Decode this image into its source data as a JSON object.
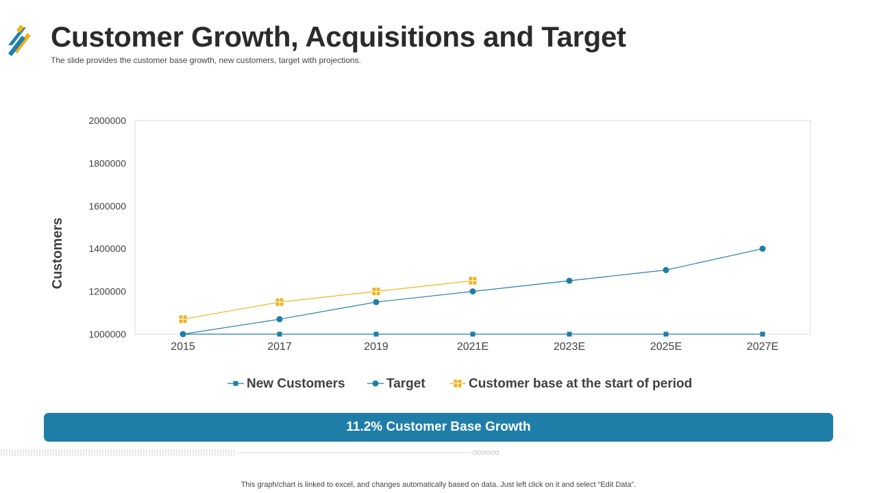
{
  "slide": {
    "title": "Customer Growth, Acquisitions and Target",
    "subtitle": "The slide provides  the customer base growth,  new customers, target with projections.",
    "banner_text": "11.2% Customer Base Growth",
    "footnote": "This graph/chart is linked to excel,  and changes automatically based on data. Just left click on it and select “Edit Data”."
  },
  "colors": {
    "blue": "#1f7ea8",
    "gold": "#f0b21b",
    "dark": "#2b2b2b"
  },
  "chart_data": {
    "type": "line",
    "ylabel": "Customers",
    "xlabel": "",
    "ylim": [
      1000000,
      2000000
    ],
    "yticks": [
      1000000,
      1200000,
      1400000,
      1600000,
      1800000,
      2000000
    ],
    "categories": [
      "2015",
      "2017",
      "2019",
      "2021E",
      "2023E",
      "2025E",
      "2027E"
    ],
    "legend_position": "bottom",
    "grid": false,
    "series": [
      {
        "name": "New Customers",
        "marker": "square",
        "color": "#1f7ea8",
        "values": [
          1000000,
          1000000,
          1000000,
          1000000,
          1000000,
          1000000,
          1000000
        ]
      },
      {
        "name": "Target",
        "marker": "circle",
        "color": "#1f7ea8",
        "values": [
          1000000,
          1070000,
          1150000,
          1200000,
          1250000,
          1300000,
          1400000
        ]
      },
      {
        "name": "Customer base at the start of period",
        "marker": "square-cross",
        "color": "#f0b21b",
        "values": [
          1070000,
          1150000,
          1200000,
          1250000,
          null,
          null,
          null
        ]
      }
    ]
  }
}
